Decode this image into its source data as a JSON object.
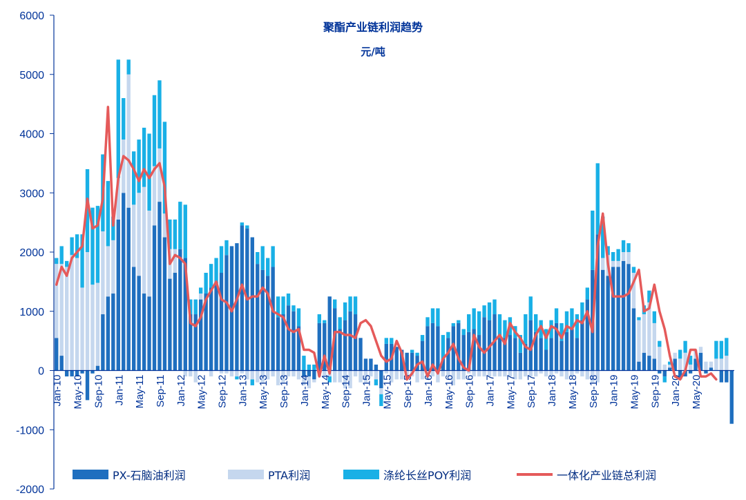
{
  "chart_data": {
    "type": "bar",
    "title": "聚酯产业链利润趋势",
    "subtitle": "元/吨",
    "ylim": [
      -2000,
      6000
    ],
    "yticks": [
      "-2000",
      "-1000",
      "0",
      "1000",
      "2000",
      "3000",
      "4000",
      "5000",
      "6000"
    ],
    "xtick_labels": [
      "Jan-10",
      "May-10",
      "Sep-10",
      "Jan-11",
      "May-11",
      "Sep-11",
      "Jan-12",
      "May-12",
      "Sep-12",
      "Jan-13",
      "May-13",
      "Sep-13",
      "Jan-14",
      "May-14",
      "Sep-14",
      "Jan-15",
      "May-15",
      "Sep-15",
      "Jan-16",
      "May-16",
      "Sep-16",
      "Jan-17",
      "May-17",
      "Sep-17",
      "Jan-18",
      "May-18",
      "Sep-18",
      "Jan-19",
      "May-19",
      "Sep-19",
      "Jan-20",
      "May-20"
    ],
    "colors": {
      "px": "#1f6fbf",
      "pta": "#c5d7ee",
      "poy": "#19b0e6",
      "total": "#e55a5a",
      "axis": "#003399"
    },
    "series": [
      {
        "name": "PX-石脑油利润",
        "type": "bar",
        "values": [
          550,
          250,
          -100,
          -100,
          -100,
          -50,
          -500,
          -50,
          80,
          950,
          1250,
          1300,
          2550,
          3000,
          2750,
          1750,
          1600,
          1300,
          1250,
          2450,
          2850,
          2250,
          1550,
          1650,
          2050,
          1900,
          950,
          950,
          1200,
          1300,
          1400,
          1500,
          1650,
          1950,
          2100,
          2150,
          2450,
          2400,
          2250,
          1800,
          1700,
          1600,
          1750,
          900,
          950,
          1100,
          1000,
          750,
          -100,
          -100,
          -150,
          800,
          800,
          1250,
          1050,
          700,
          850,
          1000,
          950,
          550,
          200,
          200,
          100,
          -300,
          450,
          450,
          400,
          350,
          300,
          300,
          250,
          500,
          750,
          800,
          750,
          200,
          550,
          750,
          800,
          600,
          650,
          700,
          600,
          900,
          850,
          950,
          550,
          550,
          600,
          550,
          300,
          450,
          850,
          650,
          550,
          350,
          550,
          800,
          500,
          650,
          700,
          550,
          850,
          1200,
          1700,
          2300,
          1700,
          1600,
          1750,
          1750,
          1850,
          1800,
          1050,
          150,
          300,
          250,
          200,
          -50,
          -100,
          50,
          200,
          -150,
          -100,
          -50,
          200,
          300,
          -50,
          50,
          0,
          -200,
          -200,
          -900
        ],
        "labels": []
      },
      {
        "name": "PTA利润",
        "type": "bar",
        "values": [
          1250,
          1550,
          1750,
          1950,
          1900,
          1400,
          2000,
          1450,
          1400,
          1400,
          850,
          900,
          700,
          900,
          2250,
          1050,
          1400,
          1800,
          1450,
          1000,
          900,
          400,
          500,
          400,
          0,
          -100,
          -100,
          -200,
          100,
          0,
          -100,
          0,
          -50,
          -50,
          -100,
          -100,
          -50,
          -150,
          -150,
          -200,
          -200,
          -150,
          -100,
          -250,
          -200,
          -100,
          -100,
          -150,
          -150,
          -200,
          -50,
          -100,
          -100,
          -100,
          -200,
          -200,
          -300,
          -300,
          -100,
          -200,
          -200,
          -100,
          -150,
          -100,
          -50,
          -200,
          -150,
          -150,
          -100,
          -100,
          -200,
          -150,
          -150,
          -100,
          -200,
          -100,
          -100,
          -250,
          -150,
          -150,
          -50,
          -100,
          -100,
          -100,
          -100,
          -100,
          -100,
          -100,
          -100,
          -150,
          -150,
          -100,
          -100,
          -100,
          -50,
          -100,
          -100,
          -50,
          -100,
          -150,
          -100,
          -50,
          -100,
          -150,
          -200,
          -200,
          200,
          350,
          100,
          100,
          150,
          200,
          600,
          700,
          650,
          900,
          600,
          400,
          100,
          50,
          100,
          200,
          300,
          100,
          150,
          100,
          150,
          100,
          200,
          200,
          250
        ],
        "labels": []
      },
      {
        "name": "涤纶长丝POY利润",
        "type": "bar",
        "values": [
          100,
          300,
          100,
          300,
          400,
          900,
          1400,
          1300,
          1300,
          1300,
          1100,
          400,
          2000,
          700,
          250,
          900,
          900,
          1000,
          1300,
          1200,
          1150,
          1550,
          500,
          500,
          800,
          900,
          250,
          250,
          100,
          350,
          400,
          400,
          450,
          250,
          0,
          -50,
          50,
          50,
          -100,
          200,
          400,
          300,
          350,
          350,
          300,
          200,
          100,
          300,
          250,
          100,
          100,
          150,
          50,
          -100,
          150,
          200,
          300,
          250,
          300,
          0,
          0,
          0,
          -100,
          -200,
          100,
          100,
          0,
          0,
          0,
          50,
          50,
          100,
          150,
          250,
          300,
          400,
          100,
          50,
          50,
          100,
          300,
          350,
          400,
          200,
          300,
          250,
          400,
          300,
          300,
          200,
          300,
          500,
          400,
          300,
          300,
          350,
          300,
          250,
          300,
          350,
          350,
          400,
          300,
          200,
          1000,
          1200,
          700,
          150,
          150,
          200,
          200,
          150,
          100,
          50,
          150,
          200,
          200,
          100,
          -100,
          50,
          0,
          150,
          200,
          150,
          0,
          0,
          0,
          0,
          300,
          300,
          300
        ],
        "labels": []
      },
      {
        "name": "一体化产业链总利润",
        "type": "line",
        "values": [
          1450,
          1750,
          1600,
          1900,
          2000,
          2100,
          2900,
          2400,
          2450,
          2900,
          4450,
          2450,
          3250,
          3620,
          3550,
          3400,
          3200,
          3400,
          3250,
          3400,
          3500,
          3100,
          1800,
          1950,
          1900,
          1800,
          800,
          750,
          900,
          1200,
          1350,
          1500,
          1200,
          1150,
          1000,
          1200,
          1450,
          1200,
          1250,
          1250,
          1400,
          1300,
          1000,
          950,
          900,
          700,
          650,
          700,
          350,
          350,
          300,
          -100,
          250,
          -50,
          650,
          650,
          600,
          600,
          550,
          800,
          850,
          750,
          500,
          250,
          150,
          200,
          500,
          300,
          -150,
          -50,
          100,
          150,
          -100,
          100,
          -50,
          200,
          300,
          450,
          200,
          50,
          0,
          600,
          400,
          300,
          400,
          500,
          600,
          450,
          800,
          650,
          550,
          400,
          350,
          600,
          750,
          550,
          750,
          700,
          550,
          750,
          700,
          850,
          800,
          1000,
          650,
          2100,
          2650,
          1800,
          1250,
          1250,
          1250,
          1300,
          1500,
          1700,
          1000,
          1050,
          1450,
          1000,
          700,
          250,
          -100,
          -150,
          0,
          350,
          350,
          -100,
          -100,
          -50,
          -150
        ]
      }
    ],
    "legend": [
      {
        "label": "PX-石脑油利润",
        "key": "px"
      },
      {
        "label": "PTA利润",
        "key": "pta"
      },
      {
        "label": "涤纶长丝POY利润",
        "key": "poy"
      },
      {
        "label": "一体化产业链总利润",
        "key": "total"
      }
    ]
  }
}
